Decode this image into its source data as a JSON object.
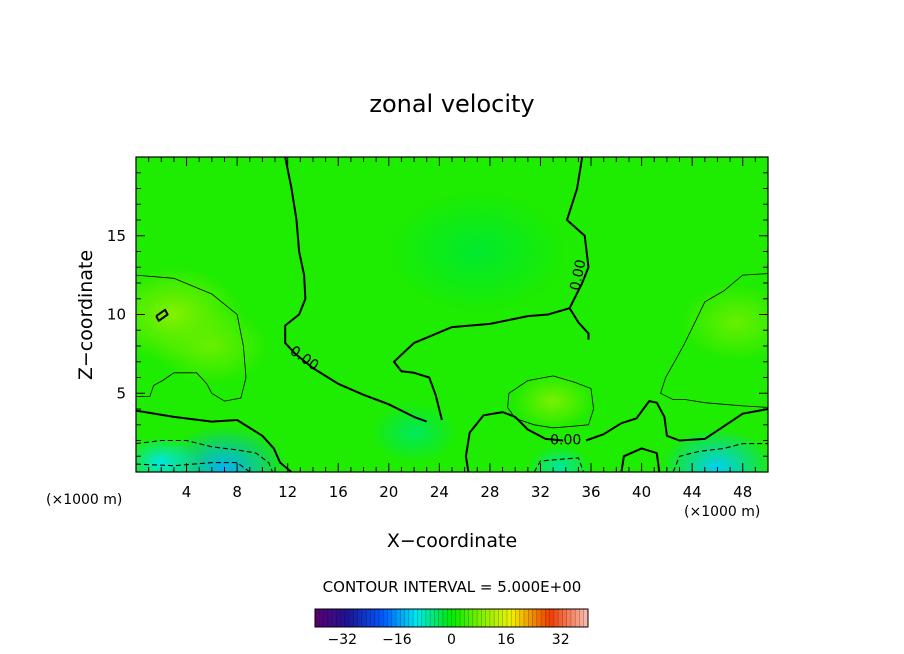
{
  "chart_data": {
    "type": "heatmap",
    "title": "zonal velocity",
    "xlabel": "X−coordinate",
    "ylabel": "Z−coordinate",
    "x_unit_left": "(×1000 m)",
    "x_unit_right": "(×1000 m)",
    "xlim": [
      0,
      50
    ],
    "ylim": [
      0,
      20
    ],
    "x_ticks": [
      4,
      8,
      12,
      16,
      20,
      24,
      28,
      32,
      36,
      40,
      44,
      48
    ],
    "y_ticks": [
      5,
      10,
      15
    ],
    "contour_interval_label": "CONTOUR INTERVAL = 5.000E+00",
    "colorbar": {
      "range": [
        -40,
        40
      ],
      "ticks": [
        -32,
        -16,
        0,
        16,
        32
      ]
    },
    "contour_labels": [
      {
        "text": "0.00",
        "x": 13.3,
        "z": 7.2,
        "rotate": 35
      },
      {
        "text": "0.00",
        "x": 35.0,
        "z": 12.5,
        "rotate": -78
      },
      {
        "text": "0.00",
        "x": 34.0,
        "z": 2.0,
        "rotate": 0
      }
    ],
    "zero_contours": [
      {
        "name": "zero-contour-left",
        "points": [
          [
            11.8,
            20
          ],
          [
            12.3,
            18
          ],
          [
            12.7,
            16
          ],
          [
            12.9,
            14
          ],
          [
            13.3,
            12.5
          ],
          [
            13.4,
            11
          ],
          [
            12.9,
            10
          ],
          [
            11.8,
            9.3
          ],
          [
            11.8,
            8.2
          ],
          [
            12.6,
            7.5
          ],
          [
            14,
            6.6
          ],
          [
            16,
            5.6
          ],
          [
            18,
            4.9
          ],
          [
            20,
            4.3
          ],
          [
            22,
            3.5
          ],
          [
            23,
            3.2
          ]
        ]
      },
      {
        "name": "zero-contour-right",
        "points": [
          [
            35.3,
            20
          ],
          [
            34.9,
            18
          ],
          [
            34.1,
            16
          ],
          [
            35.5,
            15
          ],
          [
            35.8,
            13
          ],
          [
            35.3,
            12
          ],
          [
            34.3,
            10.4
          ],
          [
            32.6,
            10
          ],
          [
            31,
            9.9
          ],
          [
            28,
            9.4
          ],
          [
            25,
            9.2
          ],
          [
            22,
            8.2
          ],
          [
            20.4,
            7
          ],
          [
            21,
            6.4
          ],
          [
            22,
            6.3
          ],
          [
            23.2,
            6
          ],
          [
            23.7,
            4.9
          ],
          [
            24.2,
            3.3
          ]
        ]
      },
      {
        "name": "zero-contour-hook",
        "points": [
          [
            34.3,
            10.4
          ],
          [
            35,
            9.5
          ],
          [
            35.8,
            8.8
          ],
          [
            35.8,
            8.4
          ]
        ]
      },
      {
        "name": "zero-contour-bottom",
        "points": [
          [
            0,
            3.9
          ],
          [
            3,
            3.5
          ],
          [
            6,
            3.2
          ],
          [
            8,
            3.3
          ],
          [
            10,
            2.3
          ],
          [
            10.9,
            1.5
          ],
          [
            11.4,
            0.6
          ],
          [
            12.3,
            0
          ]
        ]
      },
      {
        "name": "zero-contour-mid-bottom",
        "points": [
          [
            26.3,
            0
          ],
          [
            26.1,
            1
          ],
          [
            26.4,
            2.5
          ],
          [
            27.5,
            3.6
          ],
          [
            29,
            3.8
          ],
          [
            30,
            3.5
          ],
          [
            31,
            2.7
          ],
          [
            32.4,
            2.1
          ],
          [
            33.8,
            2
          ]
        ]
      },
      {
        "name": "zero-contour-right-bottom",
        "points": [
          [
            35.6,
            2
          ],
          [
            37,
            2.4
          ],
          [
            38.4,
            3.1
          ],
          [
            39.6,
            3.4
          ],
          [
            40.6,
            4.5
          ],
          [
            41.2,
            4.4
          ],
          [
            41.8,
            3.5
          ],
          [
            42,
            2.3
          ],
          [
            43,
            2
          ],
          [
            45,
            2.1
          ],
          [
            46.5,
            2.9
          ],
          [
            48,
            3.7
          ],
          [
            50,
            4
          ]
        ]
      },
      {
        "name": "zero-contour-bump",
        "points": [
          [
            38.4,
            0
          ],
          [
            38.6,
            1
          ],
          [
            40,
            1.5
          ],
          [
            41.2,
            1.2
          ],
          [
            41.4,
            0
          ]
        ]
      },
      {
        "name": "zero-contour-ellipse",
        "points": [
          [
            1.6,
            9.9
          ],
          [
            2.3,
            10.3
          ],
          [
            2.5,
            10
          ],
          [
            1.8,
            9.6
          ],
          [
            1.6,
            9.9
          ]
        ]
      }
    ],
    "thin_contours": [
      {
        "name": "contour-5-left",
        "points": [
          [
            0,
            12.5
          ],
          [
            3,
            12.3
          ],
          [
            6,
            11.3
          ],
          [
            8,
            10
          ],
          [
            8.5,
            8
          ],
          [
            8.7,
            6
          ],
          [
            8.3,
            4.7
          ],
          [
            7,
            4.5
          ],
          [
            6,
            5
          ],
          [
            5.6,
            5.6
          ],
          [
            4.8,
            6.3
          ],
          [
            3,
            6.3
          ],
          [
            2.1,
            5.8
          ],
          [
            1.4,
            5.5
          ],
          [
            1.1,
            4.8
          ],
          [
            0,
            4.8
          ]
        ]
      },
      {
        "name": "contour-5-center",
        "points": [
          [
            29.5,
            5
          ],
          [
            31,
            5.8
          ],
          [
            33,
            6.1
          ],
          [
            34.7,
            5.7
          ],
          [
            36,
            5.3
          ],
          [
            36.2,
            4
          ],
          [
            35.8,
            3
          ],
          [
            34.5,
            2.9
          ],
          [
            33,
            2.8
          ],
          [
            31.5,
            3
          ],
          [
            30,
            3.4
          ],
          [
            29.4,
            4.1
          ],
          [
            29.5,
            5
          ]
        ]
      },
      {
        "name": "contour-5-right",
        "points": [
          [
            50,
            12.6
          ],
          [
            48,
            12.5
          ],
          [
            46.5,
            11.5
          ],
          [
            45,
            10.8
          ],
          [
            44.1,
            9.3
          ],
          [
            43.3,
            8
          ],
          [
            42.6,
            7
          ],
          [
            41.9,
            6
          ],
          [
            41.5,
            5
          ],
          [
            42.5,
            4.6
          ],
          [
            43.5,
            4.6
          ],
          [
            45,
            4.4
          ],
          [
            46.5,
            4.3
          ],
          [
            48,
            4.2
          ],
          [
            50,
            4.1
          ]
        ]
      }
    ],
    "dashed_contours": [
      {
        "name": "contour-neg5-left",
        "points": [
          [
            0,
            1.8
          ],
          [
            2,
            2
          ],
          [
            4,
            2
          ],
          [
            6,
            1.6
          ],
          [
            8,
            1.4
          ],
          [
            9.5,
            1.2
          ],
          [
            10.5,
            0.6
          ],
          [
            10.8,
            0
          ]
        ]
      },
      {
        "name": "contour-neg10-left",
        "points": [
          [
            0,
            0.5
          ],
          [
            3,
            0.4
          ],
          [
            6,
            0.6
          ],
          [
            8,
            0.6
          ],
          [
            9,
            0
          ]
        ]
      },
      {
        "name": "contour-neg5-right",
        "points": [
          [
            42.5,
            0
          ],
          [
            43,
            1
          ],
          [
            44.5,
            1.3
          ],
          [
            46.5,
            1.5
          ],
          [
            48,
            1.8
          ],
          [
            50,
            1.8
          ]
        ]
      },
      {
        "name": "contour-neg5-mid",
        "points": [
          [
            31.5,
            0
          ],
          [
            32,
            0.7
          ],
          [
            33.5,
            0.8
          ],
          [
            35,
            0.9
          ],
          [
            35.4,
            0
          ]
        ]
      }
    ],
    "fields": [
      {
        "x": 3,
        "z": 10,
        "r": 5.5,
        "v": 9
      },
      {
        "x": 6,
        "z": 8,
        "r": 4.5,
        "v": 7
      },
      {
        "x": 47.5,
        "z": 9.5,
        "r": 4.5,
        "v": 7
      },
      {
        "x": 33,
        "z": 4.5,
        "r": 3.2,
        "v": 8
      },
      {
        "x": 7,
        "z": 0.2,
        "r": 5,
        "v": -14
      },
      {
        "x": 2,
        "z": 0.6,
        "r": 3,
        "v": -10
      },
      {
        "x": 46,
        "z": 0.3,
        "r": 4.5,
        "v": -12
      },
      {
        "x": 33.5,
        "z": 0.3,
        "r": 2.5,
        "v": -7
      },
      {
        "x": 22,
        "z": 2.5,
        "r": 3.5,
        "v": -4
      },
      {
        "x": 27,
        "z": 14,
        "r": 7,
        "v": -2
      }
    ]
  }
}
